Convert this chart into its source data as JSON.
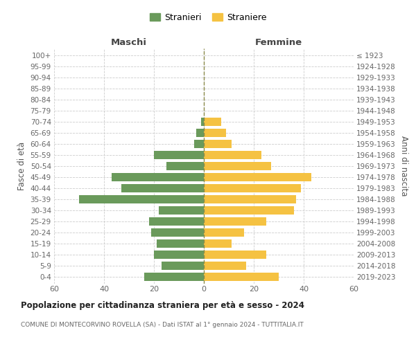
{
  "age_groups": [
    "0-4",
    "5-9",
    "10-14",
    "15-19",
    "20-24",
    "25-29",
    "30-34",
    "35-39",
    "40-44",
    "45-49",
    "50-54",
    "55-59",
    "60-64",
    "65-69",
    "70-74",
    "75-79",
    "80-84",
    "85-89",
    "90-94",
    "95-99",
    "100+"
  ],
  "birth_years": [
    "2019-2023",
    "2014-2018",
    "2009-2013",
    "2004-2008",
    "1999-2003",
    "1994-1998",
    "1989-1993",
    "1984-1988",
    "1979-1983",
    "1974-1978",
    "1969-1973",
    "1964-1968",
    "1959-1963",
    "1954-1958",
    "1949-1953",
    "1944-1948",
    "1939-1943",
    "1934-1938",
    "1929-1933",
    "1924-1928",
    "≤ 1923"
  ],
  "males": [
    24,
    17,
    20,
    19,
    21,
    22,
    18,
    50,
    33,
    37,
    15,
    20,
    4,
    3,
    1,
    0,
    0,
    0,
    0,
    0,
    0
  ],
  "females": [
    30,
    17,
    25,
    11,
    16,
    25,
    36,
    37,
    39,
    43,
    27,
    23,
    11,
    9,
    7,
    0,
    0,
    0,
    0,
    0,
    0
  ],
  "male_color": "#6a9a5b",
  "female_color": "#f5c242",
  "background_color": "#ffffff",
  "grid_color": "#cccccc",
  "title": "Popolazione per cittadinanza straniera per età e sesso - 2024",
  "subtitle": "COMUNE DI MONTECORVINO ROVELLA (SA) - Dati ISTAT al 1° gennaio 2024 - TUTTITALIA.IT",
  "xlabel_left": "Maschi",
  "xlabel_right": "Femmine",
  "ylabel_left": "Fasce di età",
  "ylabel_right": "Anni di nascita",
  "legend_males": "Stranieri",
  "legend_females": "Straniere",
  "xlim": 60,
  "center_line_color": "#8a8a4a",
  "bar_height": 0.75
}
